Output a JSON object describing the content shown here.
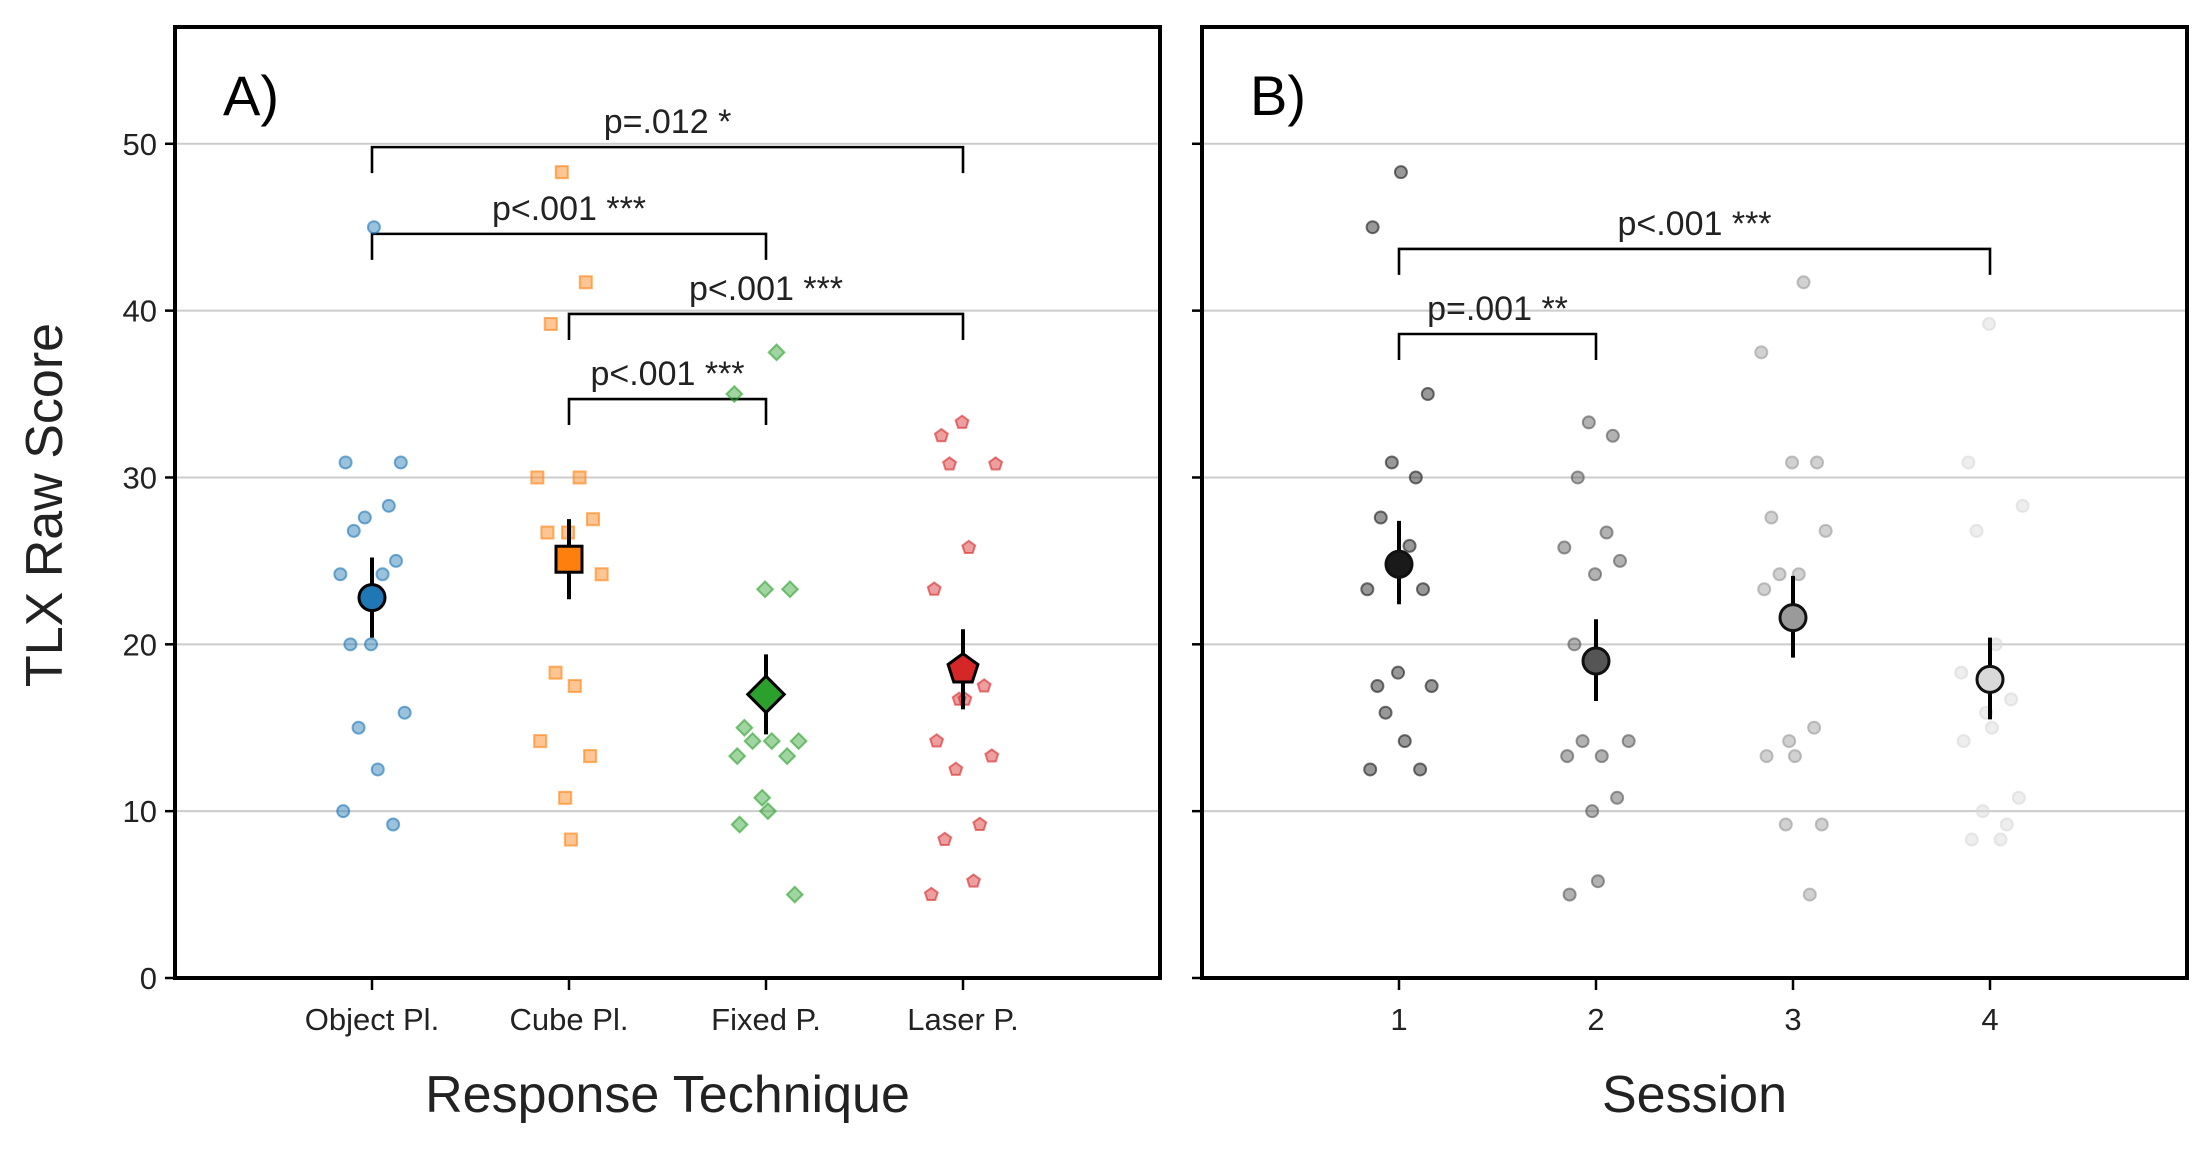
{
  "y_axis": {
    "label": "TLX Raw Score",
    "ylim": [
      0,
      57
    ],
    "ticks": [
      0,
      10,
      20,
      30,
      40,
      50
    ],
    "grid": true
  },
  "chart_data": [
    {
      "type": "scatter",
      "panel_label": "A)",
      "xlabel": "Response Technique",
      "categories": [
        "Object Pl.",
        "Cube Pl.",
        "Fixed P.",
        "Laser P."
      ],
      "colors": [
        "#1f77b4",
        "#ff7f0e",
        "#2ca02c",
        "#d62728"
      ],
      "markers": [
        "circle",
        "square",
        "diamond",
        "pentagon"
      ],
      "points": [
        [
          45.0,
          30.9,
          30.9,
          27.6,
          28.3,
          26.8,
          24.2,
          24.2,
          25.0,
          20.0,
          20.0,
          15.9,
          15.0,
          12.5,
          10.0,
          9.2
        ],
        [
          48.3,
          41.7,
          39.2,
          30.0,
          30.0,
          27.5,
          26.7,
          26.7,
          24.2,
          18.3,
          17.5,
          14.2,
          13.3,
          10.8,
          8.3
        ],
        [
          37.5,
          35.0,
          23.3,
          23.3,
          15.0,
          14.2,
          14.2,
          14.2,
          13.3,
          13.3,
          10.8,
          10.0,
          9.2,
          5.0
        ],
        [
          33.3,
          32.5,
          30.8,
          30.8,
          25.8,
          23.3,
          17.5,
          16.7,
          16.7,
          14.2,
          13.3,
          12.5,
          9.2,
          8.3,
          5.8,
          5.0
        ]
      ],
      "means": [
        22.8,
        25.1,
        17.0,
        18.5
      ],
      "ci": [
        [
          20.4,
          25.2
        ],
        [
          22.7,
          27.5
        ],
        [
          14.6,
          19.4
        ],
        [
          16.1,
          20.9
        ]
      ],
      "comparisons": [
        {
          "from": 0,
          "to": 3,
          "y": 49.8,
          "label": "p=.012 *"
        },
        {
          "from": 0,
          "to": 2,
          "y": 44.6,
          "label": "p<.001 ***"
        },
        {
          "from": 1,
          "to": 3,
          "y": 39.8,
          "label": "p<.001 ***"
        },
        {
          "from": 1,
          "to": 2,
          "y": 34.7,
          "label": "p<.001 ***"
        }
      ]
    },
    {
      "type": "scatter",
      "panel_label": "B)",
      "xlabel": "Session",
      "categories": [
        "1",
        "2",
        "3",
        "4"
      ],
      "colors": [
        "#1a1a1a",
        "#555555",
        "#9a9a9a",
        "#d9d9d9"
      ],
      "markers": [
        "circle",
        "circle",
        "circle",
        "circle"
      ],
      "points": [
        [
          48.3,
          45.0,
          35.0,
          30.9,
          30.0,
          27.6,
          25.9,
          23.3,
          23.3,
          18.3,
          17.5,
          17.5,
          15.9,
          14.2,
          12.5,
          12.5
        ],
        [
          33.3,
          32.5,
          30.0,
          26.7,
          25.8,
          25.0,
          24.2,
          20.0,
          14.2,
          14.2,
          13.3,
          13.3,
          10.8,
          10.0,
          5.8,
          5.0
        ],
        [
          41.7,
          37.5,
          30.9,
          30.9,
          27.6,
          26.8,
          24.2,
          24.2,
          23.3,
          15.0,
          14.2,
          13.3,
          13.3,
          9.2,
          9.2,
          5.0
        ],
        [
          39.2,
          30.9,
          28.3,
          26.8,
          20.0,
          18.3,
          16.7,
          15.9,
          15.0,
          14.2,
          10.8,
          10.0,
          9.2,
          8.3,
          8.3
        ]
      ],
      "means": [
        24.8,
        19.0,
        21.6,
        17.9
      ],
      "ci": [
        [
          22.4,
          27.4
        ],
        [
          16.6,
          21.5
        ],
        [
          19.2,
          24.1
        ],
        [
          15.5,
          20.4
        ]
      ],
      "comparisons": [
        {
          "from": 0,
          "to": 3,
          "y": 43.7,
          "label": "p<.001 ***"
        },
        {
          "from": 0,
          "to": 1,
          "y": 38.6,
          "label": "p=.001 **"
        }
      ]
    }
  ]
}
